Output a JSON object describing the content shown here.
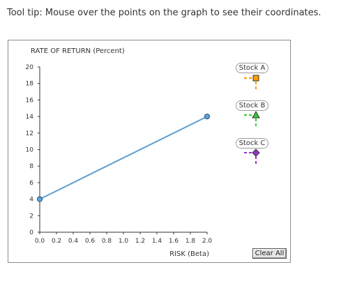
{
  "instructions": "Tool tip: Mouse over the points on the graph to see their coordinates.",
  "chart_data": {
    "type": "line",
    "ylabel": "RATE OF RETURN (Percent)",
    "xlabel": "RISK (Beta)",
    "xlim": [
      0,
      2.0
    ],
    "ylim": [
      0,
      20
    ],
    "x_ticks": [
      "0.0",
      "0.2",
      "0.4",
      "0.6",
      "0.8",
      "1.0",
      "1.2",
      "1.4",
      "1.6",
      "1.8",
      "2.0"
    ],
    "y_ticks": [
      "0",
      "2",
      "4",
      "6",
      "8",
      "10",
      "12",
      "14",
      "16",
      "18",
      "20"
    ],
    "grid": false,
    "series": [
      {
        "color": "#5aa0d2",
        "marker_color": "#5ba8de",
        "points": [
          {
            "x": 0.0,
            "y": 4
          },
          {
            "x": 2.0,
            "y": 14
          }
        ]
      }
    ]
  },
  "palette": {
    "items": [
      {
        "label": "Stock A",
        "color": "#ff9900",
        "marker": "square"
      },
      {
        "label": "Stock B",
        "color": "#33cc33",
        "marker": "triangle"
      },
      {
        "label": "Stock C",
        "color": "#9933cc",
        "marker": "diamond"
      }
    ]
  },
  "clear_all_label": "Clear All"
}
